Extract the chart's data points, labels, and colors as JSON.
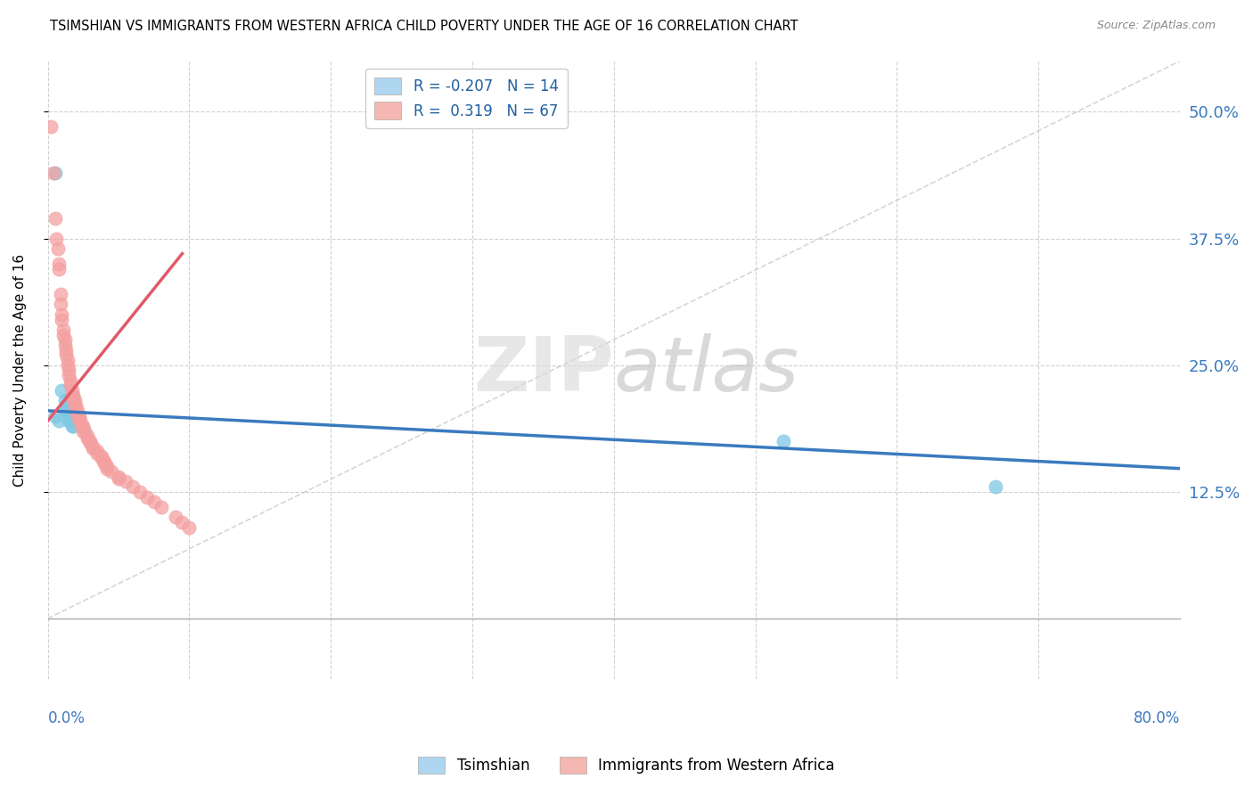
{
  "title": "TSIMSHIAN VS IMMIGRANTS FROM WESTERN AFRICA CHILD POVERTY UNDER THE AGE OF 16 CORRELATION CHART",
  "source": "Source: ZipAtlas.com",
  "ylabel": "Child Poverty Under the Age of 16",
  "watermark_zip": "ZIP",
  "watermark_atlas": "atlas",
  "tsimshian_color": "#7ec8e3",
  "western_africa_color": "#f4a0a0",
  "tsimshian_line_color": "#3a7abf",
  "western_africa_line_color": "#e05a6a",
  "diagonal_line_color": "#cccccc",
  "tsimshian_scatter": [
    [
      0.005,
      0.44
    ],
    [
      0.005,
      0.2
    ],
    [
      0.008,
      0.195
    ],
    [
      0.01,
      0.225
    ],
    [
      0.012,
      0.215
    ],
    [
      0.013,
      0.21
    ],
    [
      0.013,
      0.205
    ],
    [
      0.014,
      0.205
    ],
    [
      0.015,
      0.195
    ],
    [
      0.016,
      0.195
    ],
    [
      0.017,
      0.19
    ],
    [
      0.018,
      0.19
    ],
    [
      0.52,
      0.175
    ],
    [
      0.67,
      0.13
    ]
  ],
  "western_africa_scatter": [
    [
      0.002,
      0.485
    ],
    [
      0.004,
      0.44
    ],
    [
      0.005,
      0.395
    ],
    [
      0.006,
      0.375
    ],
    [
      0.007,
      0.365
    ],
    [
      0.008,
      0.35
    ],
    [
      0.008,
      0.345
    ],
    [
      0.009,
      0.32
    ],
    [
      0.009,
      0.31
    ],
    [
      0.01,
      0.3
    ],
    [
      0.01,
      0.295
    ],
    [
      0.011,
      0.285
    ],
    [
      0.011,
      0.28
    ],
    [
      0.012,
      0.275
    ],
    [
      0.012,
      0.27
    ],
    [
      0.013,
      0.265
    ],
    [
      0.013,
      0.26
    ],
    [
      0.014,
      0.255
    ],
    [
      0.014,
      0.25
    ],
    [
      0.015,
      0.245
    ],
    [
      0.015,
      0.24
    ],
    [
      0.016,
      0.235
    ],
    [
      0.016,
      0.23
    ],
    [
      0.017,
      0.225
    ],
    [
      0.017,
      0.22
    ],
    [
      0.018,
      0.22
    ],
    [
      0.018,
      0.215
    ],
    [
      0.019,
      0.215
    ],
    [
      0.019,
      0.21
    ],
    [
      0.02,
      0.21
    ],
    [
      0.02,
      0.205
    ],
    [
      0.021,
      0.205
    ],
    [
      0.021,
      0.2
    ],
    [
      0.022,
      0.2
    ],
    [
      0.022,
      0.195
    ],
    [
      0.023,
      0.195
    ],
    [
      0.024,
      0.19
    ],
    [
      0.025,
      0.19
    ],
    [
      0.025,
      0.185
    ],
    [
      0.026,
      0.185
    ],
    [
      0.028,
      0.18
    ],
    [
      0.028,
      0.178
    ],
    [
      0.03,
      0.175
    ],
    [
      0.03,
      0.173
    ],
    [
      0.032,
      0.17
    ],
    [
      0.032,
      0.168
    ],
    [
      0.035,
      0.165
    ],
    [
      0.035,
      0.163
    ],
    [
      0.038,
      0.16
    ],
    [
      0.038,
      0.158
    ],
    [
      0.04,
      0.155
    ],
    [
      0.04,
      0.153
    ],
    [
      0.042,
      0.15
    ],
    [
      0.042,
      0.148
    ],
    [
      0.045,
      0.145
    ],
    [
      0.05,
      0.14
    ],
    [
      0.05,
      0.138
    ],
    [
      0.055,
      0.135
    ],
    [
      0.06,
      0.13
    ],
    [
      0.065,
      0.125
    ],
    [
      0.07,
      0.12
    ],
    [
      0.075,
      0.115
    ],
    [
      0.08,
      0.11
    ],
    [
      0.09,
      0.1
    ],
    [
      0.095,
      0.095
    ],
    [
      0.1,
      0.09
    ]
  ],
  "xmin": 0.0,
  "xmax": 0.8,
  "ymin": -0.06,
  "ymax": 0.55,
  "yticks": [
    0.125,
    0.25,
    0.375,
    0.5
  ],
  "ytick_labels": [
    "12.5%",
    "25.0%",
    "37.5%",
    "50.0%"
  ],
  "tsimshian_line_x": [
    0.0,
    0.8
  ],
  "tsimshian_line_y": [
    0.205,
    0.148
  ],
  "western_africa_line_x": [
    0.0,
    0.095
  ],
  "western_africa_line_y": [
    0.195,
    0.36
  ]
}
